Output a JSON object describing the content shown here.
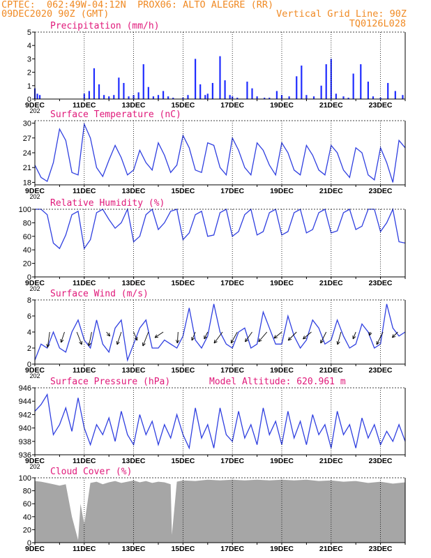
{
  "header": {
    "line1_left": "CPTEC:  062:49W-04:12N  PROX06: ALTO ALEGRE (RR)",
    "line2_left": "09DEC2020 90Z (GMT)",
    "line2_right": "Vertical Grid Line: 90Z",
    "line3_right": "TQ0126L028"
  },
  "colors": {
    "header": "#f08a24",
    "panel_title": "#e0197a",
    "line": "#2f3fe0",
    "bar": "#1f2cff",
    "cloud": "#a6a6a6",
    "wind_arrow": "#000000"
  },
  "x_axis": {
    "tick_labels": [
      "9DEC",
      "11DEC",
      "13DEC",
      "15DEC",
      "17DEC",
      "19DEC",
      "21DEC",
      "23DEC"
    ],
    "tick_days": [
      9,
      11,
      13,
      15,
      17,
      19,
      21,
      23
    ],
    "range_days": [
      9,
      24
    ],
    "clipped_year_label": "202"
  },
  "chart_data": [
    {
      "type": "bar",
      "title": "Precipitation (mm/h)",
      "ylim": [
        0,
        5
      ],
      "yticks": [
        0,
        1,
        2,
        3,
        4,
        5
      ],
      "x_units": "day of December 2020",
      "x": [
        9.0,
        9.1,
        9.2,
        11.0,
        11.2,
        11.4,
        11.6,
        11.8,
        12.0,
        12.2,
        12.4,
        12.6,
        12.8,
        13.0,
        13.2,
        13.4,
        13.6,
        13.8,
        14.0,
        14.2,
        14.4,
        14.6,
        15.0,
        15.2,
        15.5,
        15.7,
        15.9,
        16.0,
        16.2,
        16.5,
        16.7,
        16.9,
        17.0,
        17.2,
        17.6,
        17.8,
        18.0,
        18.3,
        18.5,
        18.8,
        19.0,
        19.3,
        19.6,
        19.8,
        20.0,
        20.3,
        20.6,
        20.8,
        21.0,
        21.2,
        21.5,
        21.7,
        21.9,
        22.2,
        22.5,
        22.7,
        23.0,
        23.3,
        23.6,
        23.9
      ],
      "values": [
        0.8,
        0.4,
        0.3,
        0.4,
        0.6,
        2.3,
        1.1,
        0.3,
        0.2,
        0.3,
        1.6,
        1.2,
        0.2,
        0.3,
        0.5,
        2.6,
        0.9,
        0.2,
        0.3,
        0.6,
        0.2,
        0.1,
        0.1,
        0.3,
        3.0,
        1.1,
        0.3,
        0.4,
        1.2,
        3.2,
        1.4,
        0.3,
        0.2,
        0.1,
        1.3,
        0.8,
        0.2,
        0.1,
        0.1,
        0.6,
        0.3,
        0.2,
        1.7,
        2.5,
        0.3,
        0.2,
        1.0,
        2.6,
        3.0,
        0.4,
        0.2,
        0.1,
        1.9,
        2.6,
        1.3,
        0.2,
        0.1,
        1.2,
        0.6,
        0.3
      ]
    },
    {
      "type": "line",
      "title": "Surface Temperature (nC)",
      "ylim": [
        17.5,
        30.5
      ],
      "yticks": [
        18,
        21,
        24,
        27,
        30
      ],
      "x_units": "day of December 2020",
      "x": [
        9.0,
        9.25,
        9.5,
        9.75,
        10.0,
        10.25,
        10.5,
        10.75,
        11.0,
        11.25,
        11.5,
        11.75,
        12.0,
        12.25,
        12.5,
        12.75,
        13.0,
        13.25,
        13.5,
        13.75,
        14.0,
        14.25,
        14.5,
        14.75,
        15.0,
        15.25,
        15.5,
        15.75,
        16.0,
        16.25,
        16.5,
        16.75,
        17.0,
        17.25,
        17.5,
        17.75,
        18.0,
        18.25,
        18.5,
        18.75,
        19.0,
        19.25,
        19.5,
        19.75,
        20.0,
        20.25,
        20.5,
        20.75,
        21.0,
        21.25,
        21.5,
        21.75,
        22.0,
        22.25,
        22.5,
        22.75,
        23.0,
        23.25,
        23.5,
        23.75,
        24.0
      ],
      "values": [
        21.5,
        19.0,
        18.2,
        22.0,
        28.8,
        26.5,
        20.0,
        19.5,
        29.8,
        27.0,
        21.0,
        19.2,
        22.5,
        25.5,
        23.0,
        19.5,
        20.5,
        24.5,
        22.0,
        20.5,
        26.0,
        23.5,
        20.0,
        21.5,
        27.5,
        25.0,
        20.5,
        20.0,
        26.0,
        25.5,
        21.0,
        19.5,
        27.0,
        24.5,
        21.0,
        19.5,
        26.0,
        24.5,
        21.5,
        19.5,
        26.0,
        24.0,
        20.5,
        19.5,
        25.5,
        23.5,
        20.5,
        19.5,
        25.5,
        24.0,
        20.5,
        19.0,
        25.0,
        24.0,
        19.5,
        18.5,
        25.0,
        22.0,
        18.0,
        26.5,
        25.0
      ]
    },
    {
      "type": "line",
      "title": "Relative Humidity (%)",
      "ylim": [
        0,
        100
      ],
      "yticks": [
        0,
        20,
        40,
        60,
        80,
        100
      ],
      "x_units": "day of December 2020",
      "x": [
        9.0,
        9.25,
        9.5,
        9.75,
        10.0,
        10.25,
        10.5,
        10.75,
        11.0,
        11.25,
        11.5,
        11.75,
        12.0,
        12.25,
        12.5,
        12.75,
        13.0,
        13.25,
        13.5,
        13.75,
        14.0,
        14.25,
        14.5,
        14.75,
        15.0,
        15.25,
        15.5,
        15.75,
        16.0,
        16.25,
        16.5,
        16.75,
        17.0,
        17.25,
        17.5,
        17.75,
        18.0,
        18.25,
        18.5,
        18.75,
        19.0,
        19.25,
        19.5,
        19.75,
        20.0,
        20.25,
        20.5,
        20.75,
        21.0,
        21.25,
        21.5,
        21.75,
        22.0,
        22.25,
        22.5,
        22.75,
        23.0,
        23.25,
        23.5,
        23.75,
        24.0
      ],
      "values": [
        100,
        100,
        92,
        50,
        42,
        62,
        92,
        97,
        42,
        55,
        95,
        100,
        85,
        72,
        80,
        100,
        52,
        60,
        92,
        100,
        70,
        80,
        97,
        100,
        55,
        65,
        92,
        97,
        60,
        62,
        95,
        100,
        60,
        67,
        92,
        100,
        62,
        67,
        95,
        100,
        62,
        67,
        95,
        100,
        65,
        70,
        95,
        100,
        65,
        68,
        95,
        100,
        70,
        75,
        100,
        100,
        67,
        80,
        100,
        52,
        50
      ]
    },
    {
      "type": "line",
      "title": "Surface Wind (m/s)",
      "ylim": [
        0,
        8
      ],
      "yticks": [
        0,
        2,
        4,
        6,
        8
      ],
      "x_units": "day of December 2020",
      "x": [
        9.0,
        9.25,
        9.5,
        9.75,
        10.0,
        10.25,
        10.5,
        10.75,
        11.0,
        11.25,
        11.5,
        11.75,
        12.0,
        12.25,
        12.5,
        12.75,
        13.0,
        13.25,
        13.5,
        13.75,
        14.0,
        14.25,
        14.5,
        14.75,
        15.0,
        15.25,
        15.5,
        15.75,
        16.0,
        16.25,
        16.5,
        16.75,
        17.0,
        17.25,
        17.5,
        17.75,
        18.0,
        18.25,
        18.5,
        18.75,
        19.0,
        19.25,
        19.5,
        19.75,
        20.0,
        20.25,
        20.5,
        20.75,
        21.0,
        21.25,
        21.5,
        21.75,
        22.0,
        22.25,
        22.5,
        22.75,
        23.0,
        23.25,
        23.5,
        23.75,
        24.0
      ],
      "values": [
        0.5,
        2.5,
        2.0,
        4.0,
        2.0,
        1.5,
        4.0,
        5.5,
        3.0,
        2.0,
        5.5,
        2.5,
        1.5,
        4.5,
        5.5,
        0.5,
        2.5,
        4.5,
        5.5,
        2.0,
        2.0,
        3.0,
        2.5,
        2.0,
        3.5,
        7.0,
        3.0,
        2.0,
        3.5,
        7.5,
        4.0,
        2.5,
        2.0,
        4.0,
        4.5,
        2.0,
        2.5,
        6.5,
        4.5,
        2.5,
        2.5,
        6.0,
        3.5,
        2.0,
        3.0,
        5.5,
        4.5,
        2.5,
        3.0,
        5.5,
        3.5,
        2.0,
        2.5,
        5.0,
        4.0,
        2.0,
        2.5,
        7.5,
        4.5,
        3.5,
        4.0
      ],
      "wind_arrows": [
        {
          "x": 9.6,
          "dx": -0.3,
          "dy": -2.2
        },
        {
          "x": 10.2,
          "dx": -0.5,
          "dy": -1.5
        },
        {
          "x": 10.7,
          "dx": 0.7,
          "dy": -1.8
        },
        {
          "x": 11.3,
          "dx": -0.4,
          "dy": -2.0
        },
        {
          "x": 11.9,
          "dx": 0.5,
          "dy": -0.6
        },
        {
          "x": 12.5,
          "dx": -0.6,
          "dy": -1.8
        },
        {
          "x": 13.0,
          "dx": 0.5,
          "dy": -1.2
        },
        {
          "x": 13.6,
          "dx": -0.8,
          "dy": -2.0
        },
        {
          "x": 14.2,
          "dx": -1.2,
          "dy": -0.8
        },
        {
          "x": 14.8,
          "dx": -0.1,
          "dy": -1.6
        },
        {
          "x": 15.5,
          "dx": -0.5,
          "dy": -1.2
        },
        {
          "x": 16.0,
          "dx": -0.5,
          "dy": -1.0
        },
        {
          "x": 16.6,
          "dx": -1.2,
          "dy": -1.6
        },
        {
          "x": 17.2,
          "dx": -0.9,
          "dy": -1.6
        },
        {
          "x": 17.8,
          "dx": -1.0,
          "dy": -1.4
        },
        {
          "x": 18.4,
          "dx": -1.2,
          "dy": -1.4
        },
        {
          "x": 19.0,
          "dx": -1.1,
          "dy": -0.9
        },
        {
          "x": 19.6,
          "dx": -1.2,
          "dy": -1.2
        },
        {
          "x": 20.2,
          "dx": -1.2,
          "dy": -1.0
        },
        {
          "x": 20.8,
          "dx": -0.8,
          "dy": -1.6
        },
        {
          "x": 21.4,
          "dx": -0.5,
          "dy": -1.8
        },
        {
          "x": 22.0,
          "dx": -0.4,
          "dy": -1.0
        },
        {
          "x": 22.6,
          "dx": -0.2,
          "dy": -0.5
        },
        {
          "x": 23.1,
          "dx": -0.9,
          "dy": -1.8
        },
        {
          "x": 23.7,
          "dx": -0.8,
          "dy": -0.8
        }
      ]
    },
    {
      "type": "line",
      "title": "Surface Pressure (hPa)",
      "annotation": "Model Altitude: 620.961 m",
      "ylim": [
        936,
        946
      ],
      "yticks": [
        936,
        938,
        940,
        942,
        944,
        946
      ],
      "x_units": "day of December 2020",
      "x": [
        9.0,
        9.25,
        9.5,
        9.75,
        10.0,
        10.25,
        10.5,
        10.75,
        11.0,
        11.25,
        11.5,
        11.75,
        12.0,
        12.25,
        12.5,
        12.75,
        13.0,
        13.25,
        13.5,
        13.75,
        14.0,
        14.25,
        14.5,
        14.75,
        15.0,
        15.25,
        15.5,
        15.75,
        16.0,
        16.25,
        16.5,
        16.75,
        17.0,
        17.25,
        17.5,
        17.75,
        18.0,
        18.25,
        18.5,
        18.75,
        19.0,
        19.25,
        19.5,
        19.75,
        20.0,
        20.25,
        20.5,
        20.75,
        21.0,
        21.25,
        21.5,
        21.75,
        22.0,
        22.25,
        22.5,
        22.75,
        23.0,
        23.25,
        23.5,
        23.75,
        24.0
      ],
      "values": [
        942.5,
        943.5,
        945.0,
        939.0,
        940.5,
        943.0,
        939.5,
        944.5,
        940.0,
        937.5,
        940.5,
        939.0,
        941.5,
        938.0,
        942.5,
        939.0,
        937.5,
        942.0,
        939.0,
        941.0,
        937.5,
        940.5,
        938.5,
        942.0,
        939.0,
        937.0,
        943.0,
        938.5,
        940.5,
        937.0,
        943.0,
        939.0,
        938.0,
        942.5,
        938.5,
        940.5,
        937.5,
        943.0,
        939.0,
        941.0,
        937.5,
        942.5,
        938.5,
        941.0,
        937.5,
        942.0,
        939.0,
        940.5,
        937.0,
        942.5,
        939.0,
        940.5,
        937.0,
        941.5,
        938.5,
        940.5,
        937.5,
        939.5,
        938.0,
        940.5,
        938.0
      ]
    },
    {
      "type": "area",
      "title": "Cloud Cover (%)",
      "ylim": [
        0,
        100
      ],
      "yticks": [
        0,
        20,
        40,
        60,
        80,
        100
      ],
      "x_units": "day of December 2020",
      "x": [
        9.0,
        9.25,
        9.5,
        9.75,
        10.0,
        10.25,
        10.5,
        10.75,
        10.85,
        11.0,
        11.25,
        11.5,
        11.75,
        12.0,
        12.25,
        12.5,
        12.75,
        13.0,
        13.25,
        13.5,
        13.75,
        14.0,
        14.25,
        14.5,
        14.55,
        14.75,
        15.0,
        15.5,
        16.0,
        16.5,
        17.0,
        17.5,
        18.0,
        18.5,
        19.0,
        19.5,
        20.0,
        20.5,
        21.0,
        21.5,
        22.0,
        22.5,
        23.0,
        23.5,
        24.0
      ],
      "values": [
        95,
        94,
        92,
        90,
        88,
        90,
        40,
        4,
        60,
        28,
        92,
        94,
        90,
        93,
        95,
        92,
        94,
        96,
        93,
        95,
        92,
        94,
        93,
        90,
        12,
        94,
        96,
        95,
        97,
        96,
        97,
        96,
        97,
        96,
        97,
        96,
        97,
        95,
        96,
        94,
        95,
        92,
        94,
        91,
        93
      ]
    }
  ]
}
